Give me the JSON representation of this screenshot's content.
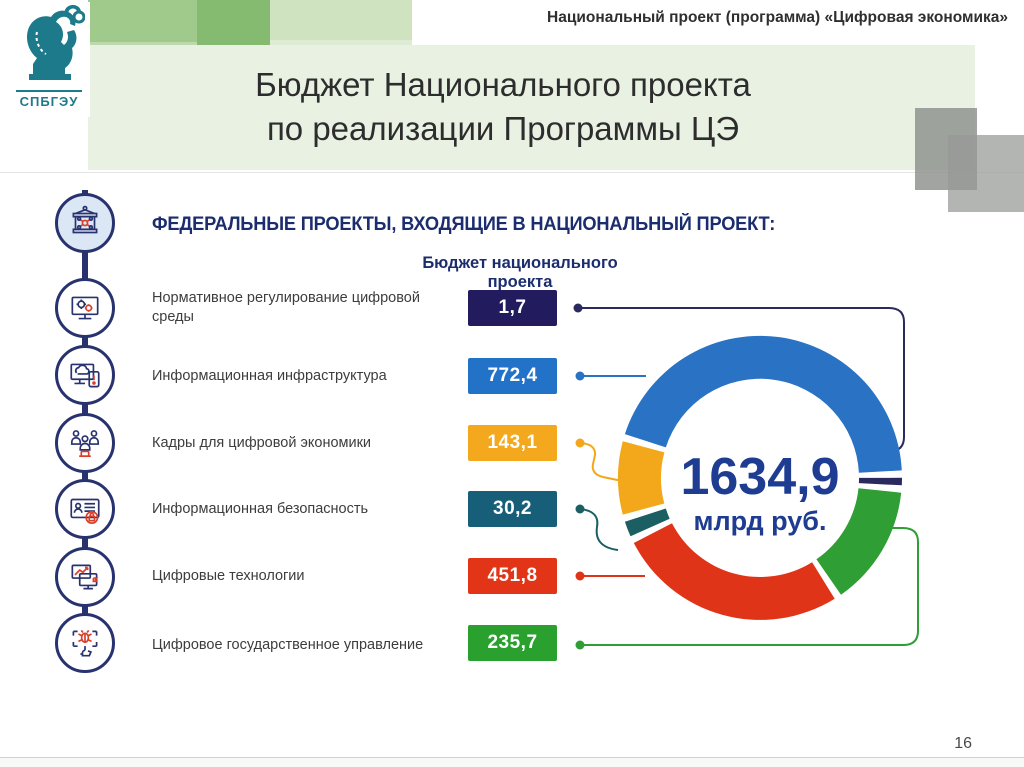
{
  "header": {
    "project_label": "Национальный проект (программа) «Цифровая экономика»"
  },
  "logo": {
    "abbr": "СПБГЭУ"
  },
  "title": {
    "line1": "Бюджет Национального проекта",
    "line2": "по реализации Программы ЦЭ"
  },
  "section": {
    "heading": "ФЕДЕРАЛЬНЫЕ ПРОЕКТЫ, ВХОДЯЩИЕ В НАЦИОНАЛЬНЫЙ ПРОЕКТ:",
    "chart_title": "Бюджет национального проекта"
  },
  "rows": [
    {
      "label": "Нормативное регулирование цифровой среды",
      "value_display": "1,7",
      "value": 1.7,
      "color": "#221b5e"
    },
    {
      "label": "Информационная инфраструктура",
      "value_display": "772,4",
      "value": 772.4,
      "color": "#2272c8"
    },
    {
      "label": "Кадры для цифровой экономики",
      "value_display": "143,1",
      "value": 143.1,
      "color": "#f4a81d"
    },
    {
      "label": "Информационная безопасность",
      "value_display": "30,2",
      "value": 30.2,
      "color": "#175f78"
    },
    {
      "label": "Цифровые технологии",
      "value_display": "451,8",
      "value": 451.8,
      "color": "#e23417"
    },
    {
      "label": "Цифровое государственное управление",
      "value_display": "235,7",
      "value": 235.7,
      "color": "#2aa12e"
    }
  ],
  "chart_data": {
    "type": "pie",
    "subtype": "donut",
    "title": "Бюджет национального проекта",
    "center_label": "1634,9",
    "center_unit": "млрд руб.",
    "total_value": 1634.9,
    "unit": "млрд руб.",
    "segments": [
      {
        "name": "Нормативное регулирование цифровой среды",
        "value": 1.7,
        "color": "#2b2a5e"
      },
      {
        "name": "Информационная инфраструктура",
        "value": 772.4,
        "color": "#2a72c4"
      },
      {
        "name": "Кадры для цифровой экономики",
        "value": 143.1,
        "color": "#f3a81b"
      },
      {
        "name": "Информационная безопасность",
        "value": 30.2,
        "color": "#1b5f63"
      },
      {
        "name": "Цифровые технологии",
        "value": 451.8,
        "color": "#df3418"
      },
      {
        "name": "Цифровое государственное управление",
        "value": 235.7,
        "color": "#2f9e34"
      }
    ],
    "draw_order": [
      1,
      0,
      5,
      4,
      3,
      2
    ],
    "start_angle_deg": 288,
    "gap_deg": 3,
    "legend_position": "left-callouts",
    "grid": false
  },
  "page": {
    "number": "16"
  }
}
